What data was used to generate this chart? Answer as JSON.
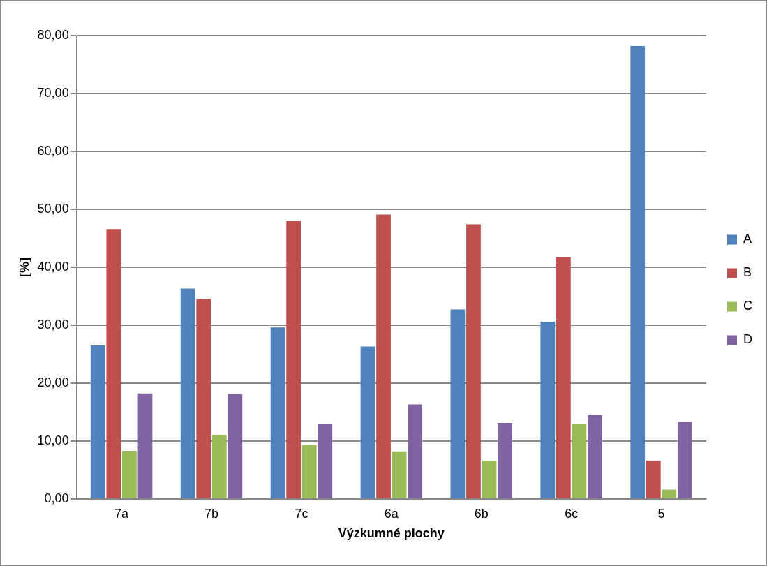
{
  "chart_data": {
    "type": "bar",
    "xlabel": "Výzkumné plochy",
    "ylabel": "[%]",
    "categories": [
      "7a",
      "7b",
      "7c",
      "6a",
      "6b",
      "6c",
      "5"
    ],
    "series": [
      {
        "name": "A",
        "color": "#4f81bd",
        "values": [
          26.5,
          36.3,
          29.6,
          26.3,
          32.7,
          30.6,
          78.2
        ]
      },
      {
        "name": "B",
        "color": "#c0504d",
        "values": [
          46.6,
          34.5,
          48.0,
          49.1,
          47.4,
          41.8,
          6.6
        ]
      },
      {
        "name": "C",
        "color": "#9bbb59",
        "values": [
          8.3,
          11.0,
          9.3,
          8.2,
          6.6,
          12.9,
          1.6
        ]
      },
      {
        "name": "D",
        "color": "#8064a2",
        "values": [
          18.2,
          18.1,
          12.9,
          16.3,
          13.1,
          14.5,
          13.3
        ]
      }
    ],
    "ylim": [
      0,
      80
    ],
    "yticks": [
      {
        "value": 0,
        "label": "0,00"
      },
      {
        "value": 10,
        "label": "10,00"
      },
      {
        "value": 20,
        "label": "20,00"
      },
      {
        "value": 30,
        "label": "30,00"
      },
      {
        "value": 40,
        "label": "40,00"
      },
      {
        "value": 50,
        "label": "50,00"
      },
      {
        "value": 60,
        "label": "60,00"
      },
      {
        "value": 70,
        "label": "70,00"
      },
      {
        "value": 80,
        "label": "80,00"
      }
    ],
    "grid": "y",
    "legend": "right"
  }
}
